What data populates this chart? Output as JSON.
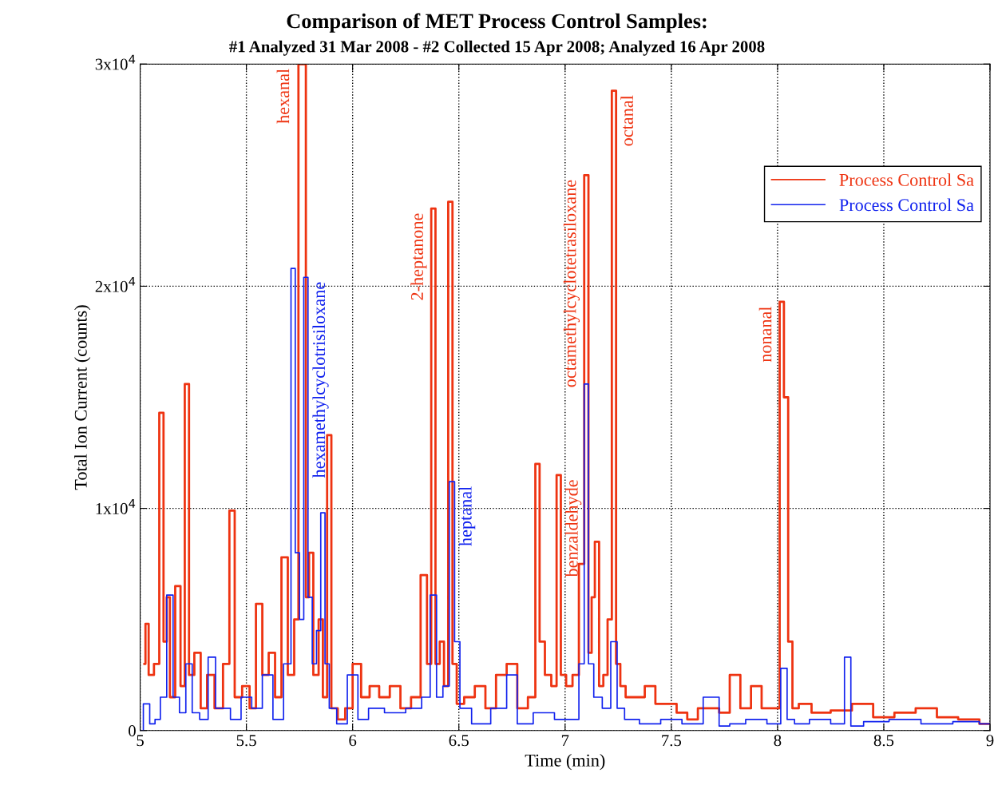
{
  "chart_data": {
    "type": "step",
    "title": "Comparison of MET Process Control Samples:",
    "subtitle": "#1 Analyzed 31 Mar 2008 - #2 Collected 15 Apr 2008; Analyzed 16 Apr 2008",
    "xlabel": "Time (min)",
    "ylabel": "Total Ion Current (counts)",
    "xlim": [
      5,
      9
    ],
    "xticks": [
      5,
      5.5,
      6,
      6.5,
      7,
      7.5,
      8,
      8.5,
      9
    ],
    "ylim": [
      0,
      30000
    ],
    "yticks": [
      0,
      {
        "value": 10000,
        "label": "1x10$^{4}$"
      },
      {
        "value": 20000,
        "label": "2x10$^{4}$"
      },
      {
        "value": 30000,
        "label": "3x10$^{4}$"
      }
    ],
    "grid": true,
    "legend": "top right",
    "line_style": "solid",
    "series": [
      {
        "name": "Process Control Sa",
        "color": "#ee3311",
        "x": [
          5.02,
          5.03,
          5.05,
          5.08,
          5.1,
          5.12,
          5.13,
          5.15,
          5.18,
          5.2,
          5.22,
          5.24,
          5.27,
          5.3,
          5.33,
          5.37,
          5.41,
          5.43,
          5.46,
          5.5,
          5.53,
          5.56,
          5.59,
          5.62,
          5.65,
          5.68,
          5.71,
          5.74,
          5.75,
          5.77,
          5.79,
          5.8,
          5.83,
          5.85,
          5.87,
          5.89,
          5.91,
          5.95,
          5.98,
          6.02,
          6.06,
          6.1,
          6.15,
          6.2,
          6.25,
          6.3,
          6.34,
          6.36,
          6.38,
          6.4,
          6.42,
          6.44,
          6.46,
          6.48,
          6.5,
          6.55,
          6.6,
          6.65,
          6.7,
          6.75,
          6.8,
          6.85,
          6.87,
          6.89,
          6.92,
          6.95,
          6.97,
          6.99,
          7.02,
          7.05,
          7.08,
          7.1,
          7.12,
          7.13,
          7.15,
          7.17,
          7.19,
          7.21,
          7.23,
          7.25,
          7.27,
          7.3,
          7.35,
          7.4,
          7.45,
          7.5,
          7.55,
          7.6,
          7.65,
          7.7,
          7.75,
          7.8,
          7.85,
          7.9,
          7.95,
          8.0,
          8.02,
          8.04,
          8.06,
          8.08,
          8.12,
          8.2,
          8.3,
          8.4,
          8.5,
          8.6,
          8.7,
          8.8,
          8.9,
          9.0
        ],
        "values": [
          3000,
          4800,
          2500,
          3000,
          14300,
          4000,
          6000,
          1500,
          6500,
          2000,
          15600,
          2500,
          3500,
          1000,
          2500,
          1000,
          3000,
          9900,
          1500,
          2000,
          1000,
          5700,
          2500,
          3500,
          1500,
          7800,
          2500,
          5000,
          30000,
          30000,
          6000,
          8000,
          2500,
          5000,
          1500,
          13300,
          1000,
          500,
          1000,
          3000,
          1500,
          2000,
          1500,
          2000,
          1000,
          1500,
          7000,
          3000,
          23500,
          3000,
          4000,
          2000,
          23800,
          3000,
          1200,
          1500,
          2000,
          1000,
          2500,
          3000,
          1000,
          1500,
          12000,
          4000,
          2500,
          2000,
          11500,
          2500,
          2000,
          2500,
          7500,
          25000,
          3500,
          6000,
          8500,
          2000,
          2500,
          5000,
          28800,
          3000,
          2000,
          1500,
          1500,
          2000,
          1200,
          1200,
          800,
          500,
          1000,
          1000,
          800,
          2500,
          1000,
          2000,
          1000,
          1000,
          19300,
          15000,
          4000,
          1000,
          1200,
          800,
          900,
          1200,
          600,
          800,
          1000,
          600,
          500,
          300
        ]
      },
      {
        "name": "Process Control Sa",
        "color": "#1122ee",
        "x": [
          5.0,
          5.03,
          5.06,
          5.08,
          5.11,
          5.14,
          5.17,
          5.2,
          5.23,
          5.26,
          5.3,
          5.34,
          5.37,
          5.4,
          5.45,
          5.5,
          5.55,
          5.6,
          5.65,
          5.7,
          5.72,
          5.74,
          5.76,
          5.78,
          5.8,
          5.82,
          5.84,
          5.86,
          5.88,
          5.9,
          5.95,
          6.0,
          6.05,
          6.1,
          6.2,
          6.3,
          6.35,
          6.38,
          6.41,
          6.44,
          6.47,
          6.49,
          6.52,
          6.6,
          6.7,
          6.75,
          6.8,
          6.9,
          7.0,
          7.05,
          7.08,
          7.1,
          7.12,
          7.15,
          7.2,
          7.23,
          7.26,
          7.3,
          7.4,
          7.5,
          7.6,
          7.7,
          7.75,
          7.8,
          7.9,
          8.0,
          8.03,
          8.06,
          8.1,
          8.2,
          8.3,
          8.33,
          8.36,
          8.45,
          8.6,
          8.75,
          8.9,
          9.0
        ],
        "values": [
          0,
          1200,
          300,
          500,
          1500,
          6100,
          1500,
          800,
          3000,
          800,
          500,
          3300,
          1000,
          1000,
          500,
          1500,
          1000,
          2500,
          500,
          3000,
          20800,
          8000,
          5000,
          20400,
          6000,
          3000,
          4500,
          9800,
          3000,
          1000,
          300,
          2500,
          500,
          1000,
          800,
          1000,
          1500,
          6100,
          1500,
          2000,
          11200,
          4000,
          1000,
          300,
          1000,
          2500,
          300,
          800,
          500,
          500,
          3000,
          15600,
          3000,
          1500,
          1000,
          4000,
          1000,
          500,
          300,
          500,
          300,
          1500,
          200,
          300,
          500,
          300,
          2800,
          500,
          300,
          500,
          300,
          3300,
          200,
          400,
          500,
          300,
          400,
          300
        ]
      }
    ],
    "annotations": [
      {
        "text": "hexanal",
        "x": 5.75,
        "y": 30000
      },
      {
        "text": "hexamethylcyclotrisiloxane",
        "x": 5.78,
        "y": 20400
      },
      {
        "text": "2-heptanone",
        "x": 6.38,
        "y": 23500
      },
      {
        "text": "heptanal",
        "x": 6.47,
        "y": 11200
      },
      {
        "text": "benzaldehyde",
        "x": 6.97,
        "y": 11500
      },
      {
        "text": "octamethylcyclotetrasiloxane",
        "x": 7.1,
        "y": 25000
      },
      {
        "text": "octanal",
        "x": 7.23,
        "y": 28800
      },
      {
        "text": "nonanal",
        "x": 8.02,
        "y": 19300
      }
    ]
  }
}
